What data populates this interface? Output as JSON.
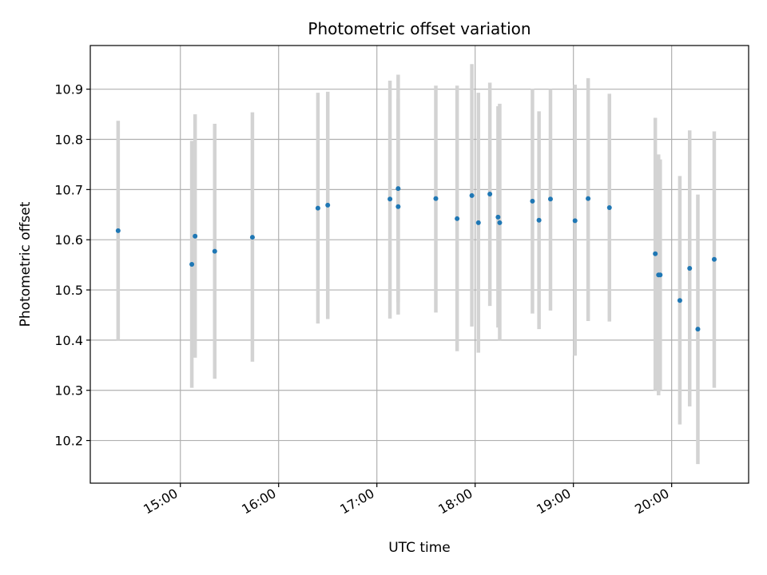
{
  "chart_data": {
    "type": "scatter",
    "title": "Photometric offset variation",
    "xlabel": "UTC time",
    "ylabel": "Photometric offset",
    "x_ticks": [
      "15:00",
      "16:00",
      "17:00",
      "18:00",
      "19:00",
      "20:00"
    ],
    "y_ticks": [
      "10.2",
      "10.3",
      "10.4",
      "10.5",
      "10.6",
      "10.7",
      "10.8",
      "10.9"
    ],
    "xlim": [
      "14:05",
      "20:47"
    ],
    "ylim": [
      10.115,
      10.987
    ],
    "grid": true,
    "colors": {
      "point": "#1f77b4",
      "errorbar": "#d3d3d3",
      "grid": "#b0b0b0"
    },
    "points": [
      {
        "x": "14:22",
        "y": 10.618,
        "ylow": 10.4,
        "yhigh": 10.837
      },
      {
        "x": "15:07",
        "y": 10.551,
        "ylow": 10.305,
        "yhigh": 10.797
      },
      {
        "x": "15:09",
        "y": 10.607,
        "ylow": 10.365,
        "yhigh": 10.85
      },
      {
        "x": "15:21",
        "y": 10.577,
        "ylow": 10.323,
        "yhigh": 10.831
      },
      {
        "x": "15:44",
        "y": 10.605,
        "ylow": 10.357,
        "yhigh": 10.854
      },
      {
        "x": "16:24",
        "y": 10.663,
        "ylow": 10.433,
        "yhigh": 10.893
      },
      {
        "x": "16:30",
        "y": 10.669,
        "ylow": 10.442,
        "yhigh": 10.895
      },
      {
        "x": "17:08",
        "y": 10.681,
        "ylow": 10.443,
        "yhigh": 10.917
      },
      {
        "x": "17:13",
        "y": 10.702,
        "ylow": 10.475,
        "yhigh": 10.929
      },
      {
        "x": "17:13",
        "y": 10.666,
        "ylow": 10.451,
        "yhigh": 10.881
      },
      {
        "x": "17:36",
        "y": 10.682,
        "ylow": 10.455,
        "yhigh": 10.907
      },
      {
        "x": "17:49",
        "y": 10.642,
        "ylow": 10.378,
        "yhigh": 10.907
      },
      {
        "x": "17:58",
        "y": 10.688,
        "ylow": 10.427,
        "yhigh": 10.95
      },
      {
        "x": "18:02",
        "y": 10.634,
        "ylow": 10.375,
        "yhigh": 10.893
      },
      {
        "x": "18:09",
        "y": 10.691,
        "ylow": 10.468,
        "yhigh": 10.913
      },
      {
        "x": "18:14",
        "y": 10.645,
        "ylow": 10.425,
        "yhigh": 10.866
      },
      {
        "x": "18:15",
        "y": 10.634,
        "ylow": 10.4,
        "yhigh": 10.871
      },
      {
        "x": "18:35",
        "y": 10.677,
        "ylow": 10.453,
        "yhigh": 10.901
      },
      {
        "x": "18:39",
        "y": 10.639,
        "ylow": 10.422,
        "yhigh": 10.856
      },
      {
        "x": "18:46",
        "y": 10.681,
        "ylow": 10.459,
        "yhigh": 10.9
      },
      {
        "x": "19:01",
        "y": 10.638,
        "ylow": 10.369,
        "yhigh": 10.909
      },
      {
        "x": "19:09",
        "y": 10.682,
        "ylow": 10.438,
        "yhigh": 10.922
      },
      {
        "x": "19:22",
        "y": 10.664,
        "ylow": 10.437,
        "yhigh": 10.891
      },
      {
        "x": "19:50",
        "y": 10.572,
        "ylow": 10.3,
        "yhigh": 10.843
      },
      {
        "x": "19:52",
        "y": 10.53,
        "ylow": 10.29,
        "yhigh": 10.77
      },
      {
        "x": "19:53",
        "y": 10.53,
        "ylow": 10.3,
        "yhigh": 10.76
      },
      {
        "x": "20:05",
        "y": 10.479,
        "ylow": 10.232,
        "yhigh": 10.727
      },
      {
        "x": "20:11",
        "y": 10.543,
        "ylow": 10.268,
        "yhigh": 10.818
      },
      {
        "x": "20:16",
        "y": 10.422,
        "ylow": 10.153,
        "yhigh": 10.69
      },
      {
        "x": "20:26",
        "y": 10.561,
        "ylow": 10.305,
        "yhigh": 10.816
      }
    ]
  }
}
